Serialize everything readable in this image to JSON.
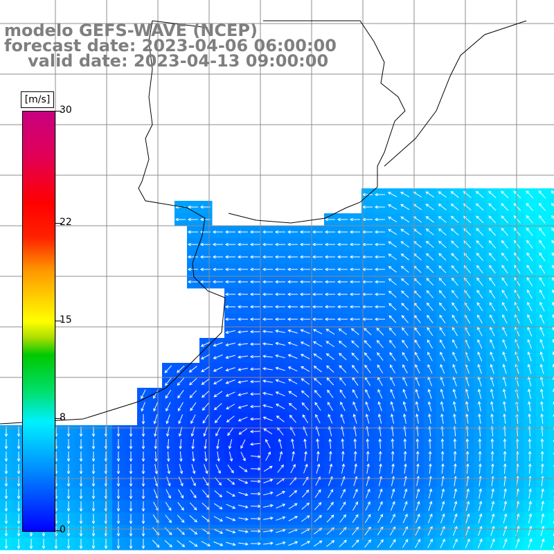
{
  "title": {
    "line1": "modelo GEFS-WAVE (NCEP)",
    "line2": "forecast date: 2023-04-06 06:00:00",
    "line3": "valid date: 2023-04-13 09:00:00"
  },
  "legend": {
    "unit": "[m/s]",
    "ticks": [
      {
        "value": "30",
        "frac": 1.0
      },
      {
        "value": "22",
        "frac": 0.7333
      },
      {
        "value": "15",
        "frac": 0.5
      },
      {
        "value": "8",
        "frac": 0.2667
      },
      {
        "value": "0",
        "frac": 0.0
      }
    ],
    "colors": {
      "low": "#0000ff",
      "mid": "#00f0ff",
      "high": "#c8007f"
    }
  },
  "map": {
    "variable": "wind speed and direction",
    "land_color": "#ffffff",
    "coastline_color": "#000000",
    "grid_color": "#8c8c8c"
  }
}
